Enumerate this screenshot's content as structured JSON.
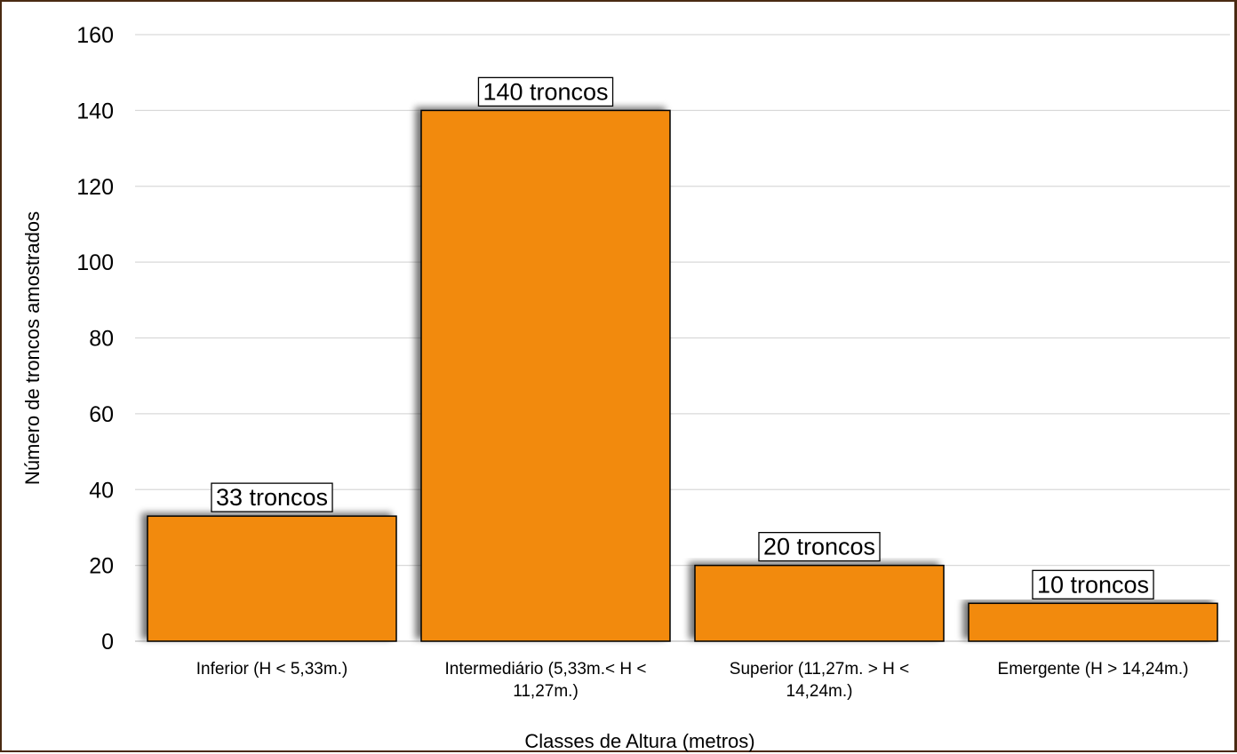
{
  "chart_data": {
    "type": "bar",
    "categories": [
      [
        "Inferior (H < 5,33m.)"
      ],
      [
        "Intermediário (5,33m.< H <",
        "11,27m.)"
      ],
      [
        "Superior (11,27m. > H <",
        "14,24m.)"
      ],
      [
        "Emergente (H > 14,24m.)"
      ]
    ],
    "values": [
      33,
      140,
      20,
      10
    ],
    "data_labels": [
      "33 troncos",
      "140 troncos",
      "20 troncos",
      "10 troncos"
    ],
    "xlabel": "Classes de Altura (metros)",
    "ylabel": "Número de troncos amostrados",
    "ylim": [
      0,
      160
    ],
    "yticks": [
      0,
      20,
      40,
      60,
      80,
      100,
      120,
      140,
      160
    ],
    "grid": true,
    "legend": "none",
    "colors": {
      "bar": "#F28A0A",
      "bar_outline": "#000000",
      "grid": "#d9d9d9",
      "frame": "#4a2a12"
    }
  }
}
